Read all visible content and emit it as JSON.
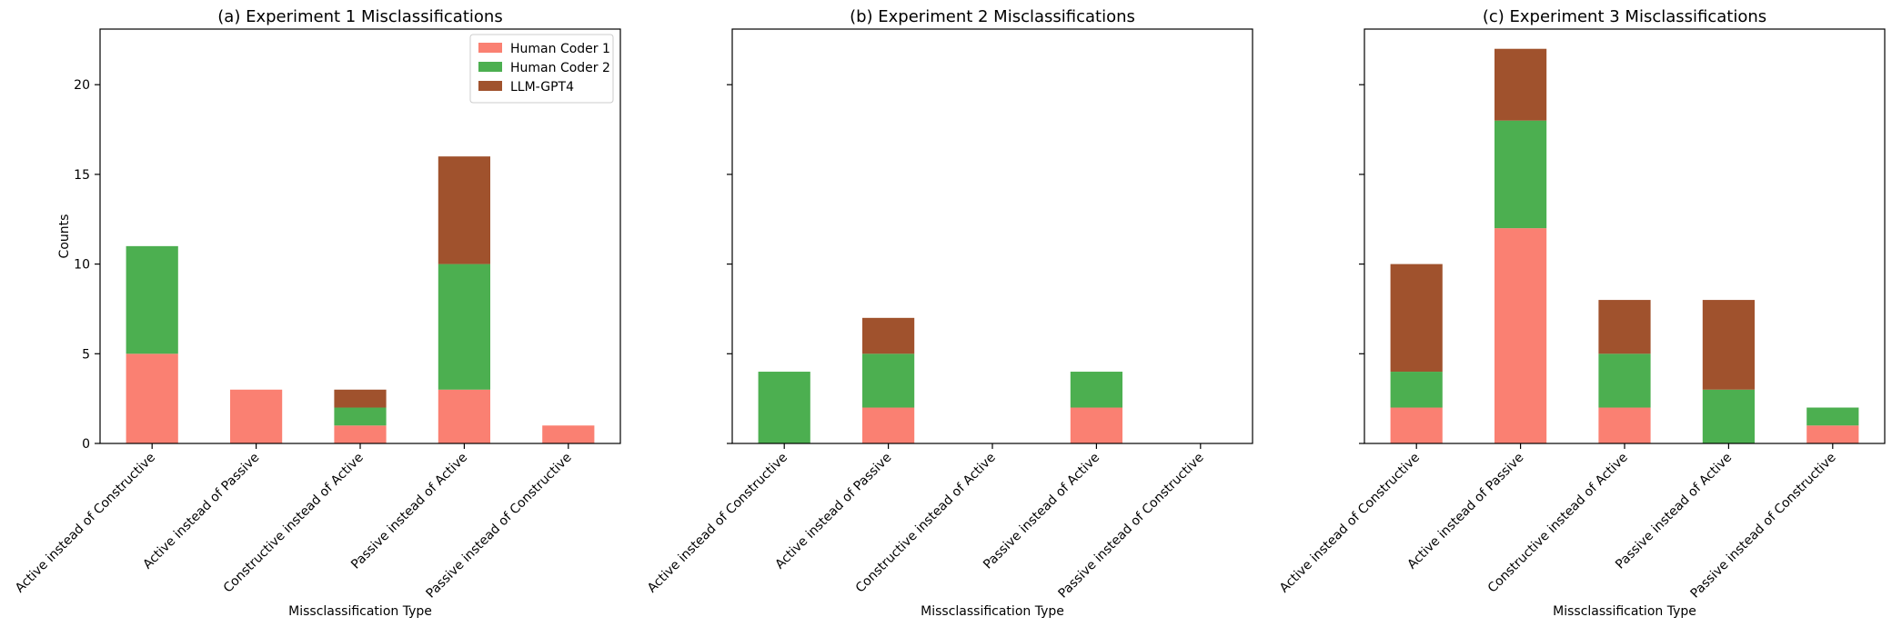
{
  "chart_data": [
    {
      "type": "bar",
      "stacked": true,
      "title": "(a) Experiment 1 Misclassifications",
      "xlabel": "Missclassification Type",
      "ylabel": "Counts",
      "ylim": [
        0,
        23.1
      ],
      "yticks": [
        0,
        5,
        10,
        15,
        20
      ],
      "show_yticklabels": true,
      "legend": true,
      "legend_position": "top-right",
      "categories": [
        "Active instead of Constructive",
        "Active instead of Passive",
        "Constructive instead of Active",
        "Passive instead of Active",
        "Passive instead of Constructive"
      ],
      "series": [
        {
          "name": "Human Coder 1",
          "color": "#fa8072",
          "values": [
            5,
            3,
            1,
            3,
            1
          ]
        },
        {
          "name": "Human Coder 2",
          "color": "#4caf50",
          "values": [
            6,
            0,
            1,
            7,
            0
          ]
        },
        {
          "name": "LLM-GPT4",
          "color": "#a0522d",
          "values": [
            0,
            0,
            1,
            6,
            0
          ]
        }
      ]
    },
    {
      "type": "bar",
      "stacked": true,
      "title": "(b) Experiment 2 Misclassifications",
      "xlabel": "Missclassification Type",
      "ylabel": "",
      "ylim": [
        0,
        23.1
      ],
      "yticks": [
        0,
        5,
        10,
        15,
        20
      ],
      "show_yticklabels": false,
      "legend": false,
      "categories": [
        "Active instead of Constructive",
        "Active instead of Passive",
        "Constructive instead of Active",
        "Passive instead of Active",
        "Passive instead of Constructive"
      ],
      "series": [
        {
          "name": "Human Coder 1",
          "color": "#fa8072",
          "values": [
            0,
            2,
            0,
            2,
            0
          ]
        },
        {
          "name": "Human Coder 2",
          "color": "#4caf50",
          "values": [
            4,
            3,
            0,
            2,
            0
          ]
        },
        {
          "name": "LLM-GPT4",
          "color": "#a0522d",
          "values": [
            0,
            2,
            0,
            0,
            0
          ]
        }
      ]
    },
    {
      "type": "bar",
      "stacked": true,
      "title": "(c) Experiment 3 Misclassifications",
      "xlabel": "Missclassification Type",
      "ylabel": "",
      "ylim": [
        0,
        23.1
      ],
      "yticks": [
        0,
        5,
        10,
        15,
        20
      ],
      "show_yticklabels": false,
      "legend": false,
      "categories": [
        "Active instead of Constructive",
        "Active instead of Passive",
        "Constructive instead of Active",
        "Passive instead of Active",
        "Passive instead of Constructive"
      ],
      "series": [
        {
          "name": "Human Coder 1",
          "color": "#fa8072",
          "values": [
            2,
            12,
            2,
            0,
            1
          ]
        },
        {
          "name": "Human Coder 2",
          "color": "#4caf50",
          "values": [
            2,
            6,
            3,
            3,
            1
          ]
        },
        {
          "name": "LLM-GPT4",
          "color": "#a0522d",
          "values": [
            6,
            4,
            3,
            5,
            0
          ]
        }
      ]
    }
  ]
}
